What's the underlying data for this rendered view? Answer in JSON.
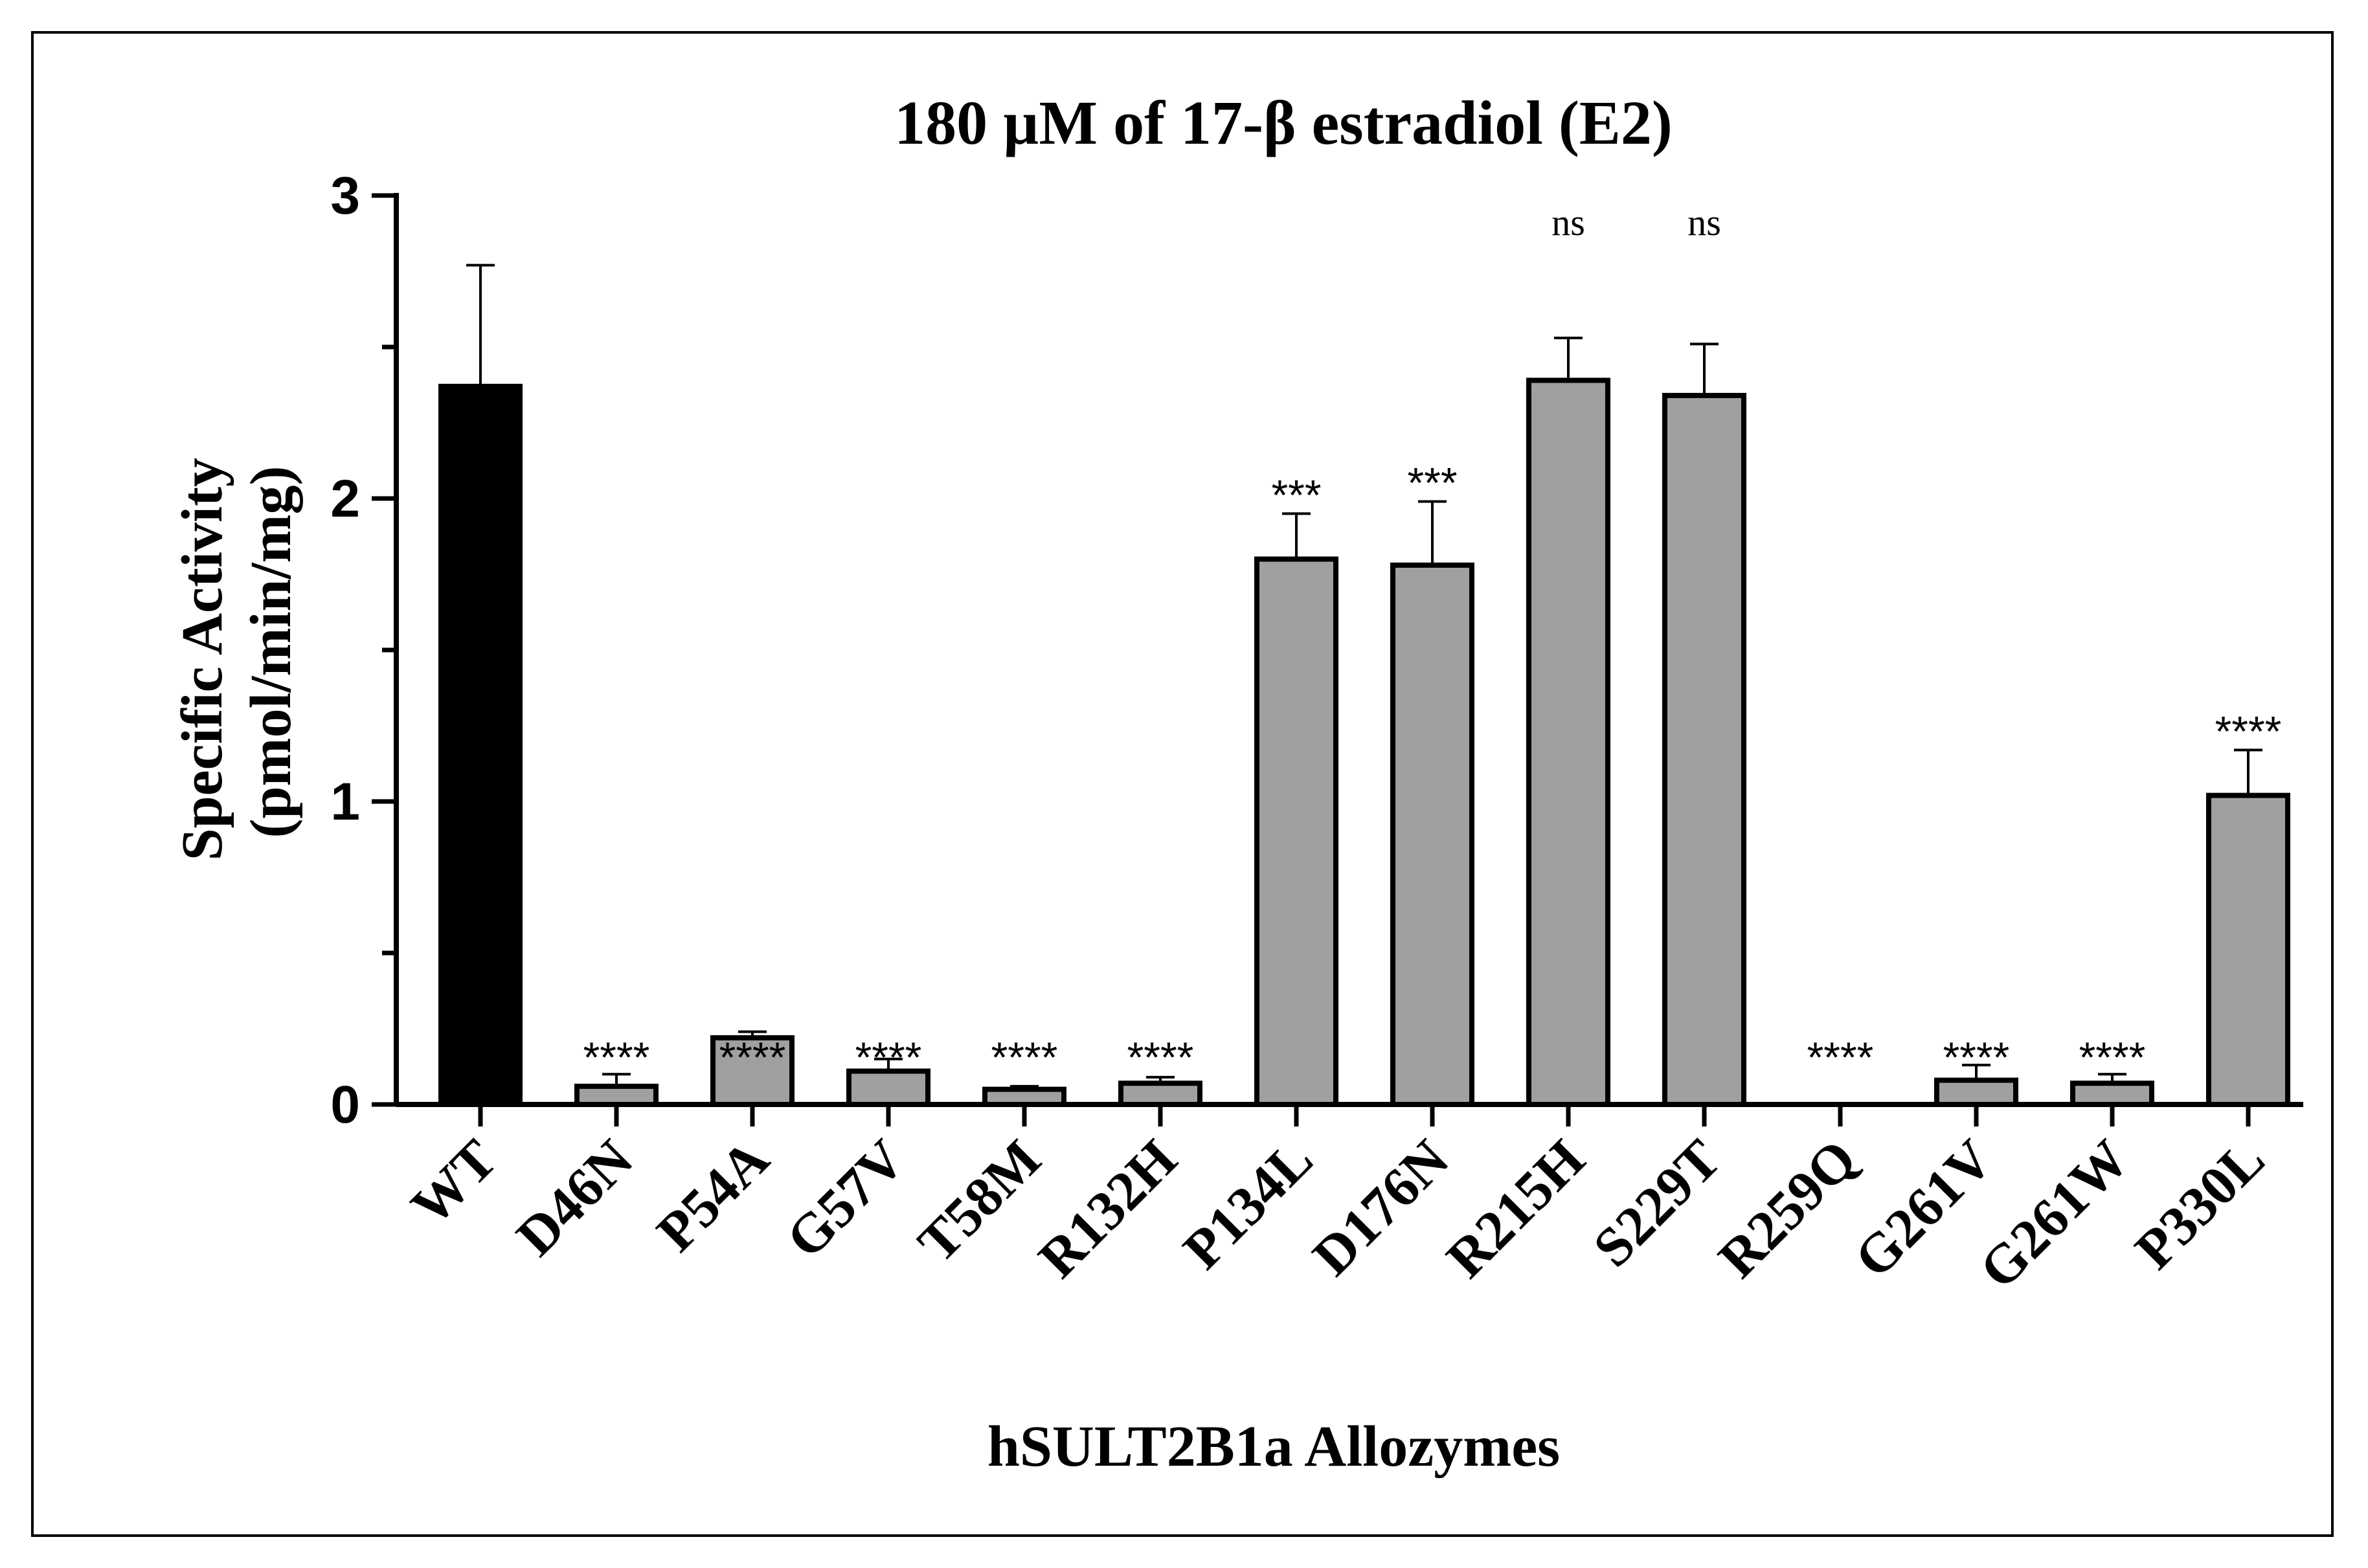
{
  "chart_data": {
    "type": "bar",
    "title": "180 µM of 17-β estradiol (E2)",
    "xlabel": "hSULT2B1a Allozymes",
    "ylabel_line1": "Specific Activity",
    "ylabel_line2": "(pmol/min/mg)",
    "ylim": [
      0,
      3
    ],
    "yticks": [
      0,
      1,
      2,
      3
    ],
    "categories": [
      "WT",
      "D46N",
      "P54A",
      "G57V",
      "T58M",
      "R132H",
      "P134L",
      "D176N",
      "R215H",
      "S229T",
      "R259Q",
      "G261V",
      "G261W",
      "P330L"
    ],
    "values": [
      2.37,
      0.06,
      0.22,
      0.11,
      0.05,
      0.07,
      1.8,
      1.78,
      2.39,
      2.34,
      0.0,
      0.08,
      0.07,
      1.02
    ],
    "errors": [
      0.4,
      0.04,
      0.02,
      0.04,
      0.01,
      0.02,
      0.15,
      0.21,
      0.14,
      0.17,
      0.0,
      0.05,
      0.03,
      0.15
    ],
    "significance": [
      "",
      "****",
      "****",
      "****",
      "****",
      "****",
      "***",
      "***",
      "ns",
      "ns",
      "****",
      "****",
      "****",
      "****"
    ],
    "colors": {
      "wt": "#000000",
      "mutant": "#a0a0a0",
      "outline": "#000000"
    },
    "grid": false,
    "legend": "none"
  }
}
